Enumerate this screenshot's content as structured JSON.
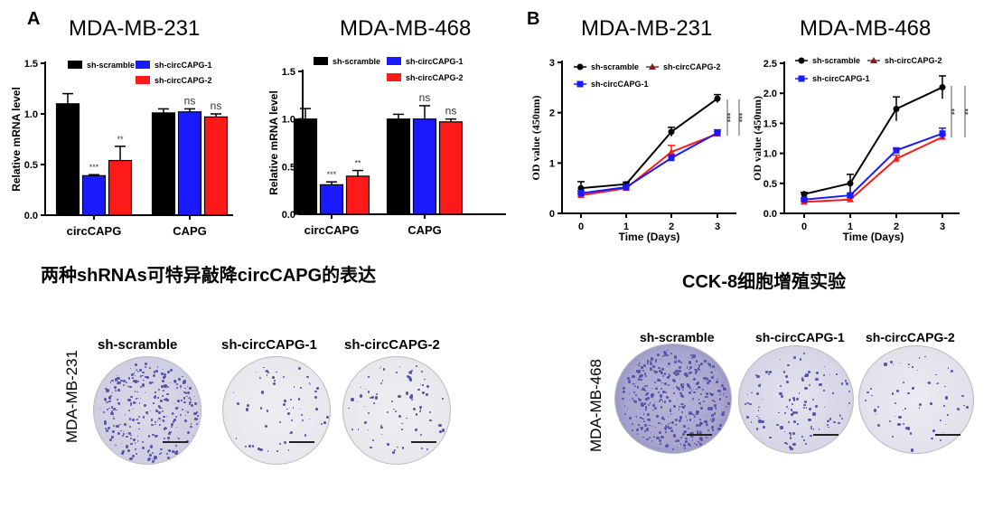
{
  "panels": {
    "A": "A",
    "B": "B"
  },
  "captions": {
    "qpcr": "两种shRNAs可特异敲降circCAPG的表达",
    "cck8": "CCK-8细胞增殖实验"
  },
  "colony": {
    "left": {
      "cell_line": "MDA-MB-231",
      "groups": [
        "sh-scramble",
        "sh-circCAPG-1",
        "sh-circCAPG-2"
      ]
    },
    "right": {
      "cell_line": "MDA-MB-468",
      "groups": [
        "sh-scramble",
        "sh-circCAPG-1",
        "sh-circCAPG-2"
      ]
    }
  },
  "colors": {
    "sh-scramble": "#000000",
    "sh-circCAPG-1": "#1a1aff",
    "sh-circCAPG-2": "#ff1a1a",
    "plate_stain": "#5a52a8"
  },
  "chart_data": [
    {
      "type": "bar",
      "title": "MDA-MB-231",
      "xlabel": "",
      "ylabel": "Relative mRNA level",
      "ylim": [
        0,
        1.5
      ],
      "yticks": [
        "0.0",
        "0.5",
        "1.0",
        "1.5"
      ],
      "categories": [
        "circCAPG",
        "CAPG"
      ],
      "series": [
        {
          "name": "sh-scramble",
          "values": [
            1.1,
            1.01
          ],
          "errors": [
            0.1,
            0.04
          ]
        },
        {
          "name": "sh-circCAPG-1",
          "values": [
            0.39,
            1.02
          ],
          "errors": [
            0.01,
            0.03
          ],
          "annotations": [
            "***",
            "ns"
          ]
        },
        {
          "name": "sh-circCAPG-2",
          "values": [
            0.54,
            0.97
          ],
          "errors": [
            0.14,
            0.03
          ],
          "annotations": [
            "**",
            "ns"
          ]
        }
      ],
      "legend": "top"
    },
    {
      "type": "bar",
      "title": "MDA-MB-468",
      "xlabel": "",
      "ylabel": "Relative mRNA level",
      "ylim": [
        0,
        1.5
      ],
      "yticks": [
        "0.0",
        "0.5",
        "1.0",
        "1.5"
      ],
      "categories": [
        "circCAPG",
        "CAPG"
      ],
      "series": [
        {
          "name": "sh-scramble",
          "values": [
            1.0,
            1.0
          ],
          "errors": [
            0.11,
            0.05
          ]
        },
        {
          "name": "sh-circCAPG-1",
          "values": [
            0.31,
            1.0
          ],
          "errors": [
            0.03,
            0.14
          ],
          "annotations": [
            "***",
            "ns"
          ]
        },
        {
          "name": "sh-circCAPG-2",
          "values": [
            0.4,
            0.97
          ],
          "errors": [
            0.06,
            0.03
          ],
          "annotations": [
            "**",
            "ns"
          ]
        }
      ],
      "legend": "top"
    },
    {
      "type": "line",
      "title": "MDA-MB-231",
      "xlabel": "Time (Days)",
      "ylabel": "OD value (450nm)",
      "x": [
        0,
        1,
        2,
        3
      ],
      "xticks": [
        "0",
        "1",
        "2",
        "3"
      ],
      "ylim": [
        0,
        3
      ],
      "yticks": [
        "0",
        "1",
        "2",
        "3"
      ],
      "series": [
        {
          "name": "sh-scramble",
          "values": [
            0.5,
            0.58,
            1.62,
            2.28
          ],
          "errors": [
            0.13,
            0.04,
            0.09,
            0.08
          ]
        },
        {
          "name": "sh-circCAPG-2",
          "values": [
            0.36,
            0.5,
            1.22,
            1.58
          ],
          "errors": [
            0.03,
            0.03,
            0.13,
            0.04
          ]
        },
        {
          "name": "sh-circCAPG-1",
          "values": [
            0.4,
            0.52,
            1.1,
            1.6
          ],
          "errors": [
            0.05,
            0.03,
            0.06,
            0.06
          ]
        }
      ],
      "significance": [
        "***",
        "***"
      ],
      "legend": "top-left"
    },
    {
      "type": "line",
      "title": "MDA-MB-468",
      "xlabel": "Time (Days)",
      "ylabel": "OD value (450nm)",
      "x": [
        0,
        1,
        2,
        3
      ],
      "xticks": [
        "0",
        "1",
        "2",
        "3"
      ],
      "ylim": [
        0,
        2.5
      ],
      "yticks": [
        "0.0",
        "0.5",
        "1.0",
        "1.5",
        "2.0",
        "2.5"
      ],
      "series": [
        {
          "name": "sh-scramble",
          "values": [
            0.32,
            0.5,
            1.74,
            2.1
          ],
          "errors": [
            0.03,
            0.15,
            0.2,
            0.19
          ]
        },
        {
          "name": "sh-circCAPG-2",
          "values": [
            0.19,
            0.23,
            0.91,
            1.27
          ],
          "errors": [
            0.02,
            0.03,
            0.06,
            0.04
          ]
        },
        {
          "name": "sh-circCAPG-1",
          "values": [
            0.23,
            0.3,
            1.05,
            1.33
          ],
          "errors": [
            0.02,
            0.03,
            0.03,
            0.09
          ]
        }
      ],
      "significance": [
        "**",
        "**"
      ],
      "legend": "top-left"
    }
  ]
}
